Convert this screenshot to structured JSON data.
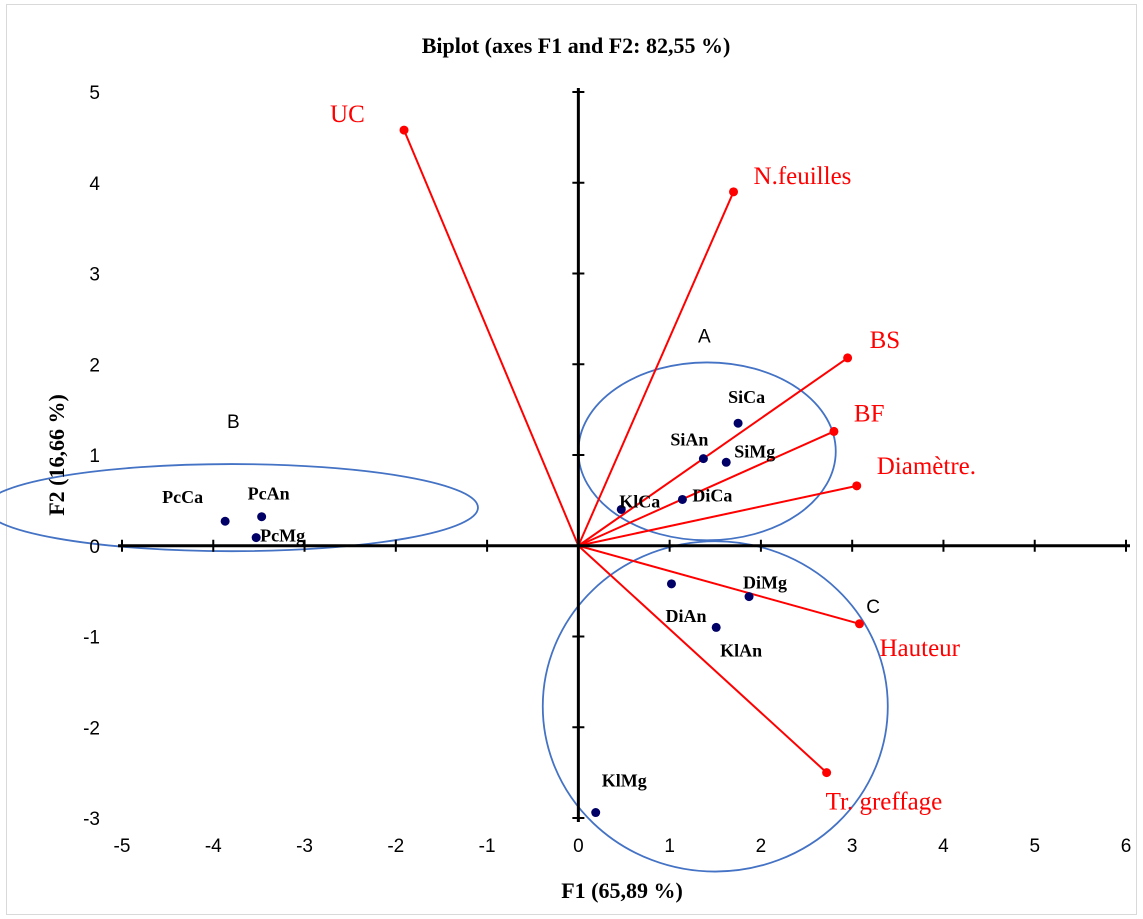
{
  "chart_data": {
    "type": "scatter",
    "title": "Biplot (axes F1 and F2: 82,55 %)",
    "xlabel": "F1 (65,89 %)",
    "ylabel": "F2 (16,66 %)",
    "xlim": [
      -5,
      6
    ],
    "ylim": [
      -3,
      5
    ],
    "x_ticks": [
      "-5",
      "-4",
      "-3",
      "-2",
      "-1",
      "0",
      "1",
      "2",
      "3",
      "4",
      "5",
      "6"
    ],
    "y_ticks": [
      "-3",
      "-2",
      "-1",
      "0",
      "1",
      "2",
      "3",
      "4",
      "5"
    ],
    "grid": false,
    "observations": [
      {
        "label": "PcCa",
        "x": -3.87,
        "y": 0.27
      },
      {
        "label": "PcAn",
        "x": -3.47,
        "y": 0.32
      },
      {
        "label": "PcMg",
        "x": -3.53,
        "y": 0.09
      },
      {
        "label": "SiCa",
        "x": 1.75,
        "y": 1.35
      },
      {
        "label": "SiAn",
        "x": 1.37,
        "y": 0.96
      },
      {
        "label": "SiMg",
        "x": 1.62,
        "y": 0.92
      },
      {
        "label": "KlCa",
        "x": 0.47,
        "y": 0.4
      },
      {
        "label": "DiCa",
        "x": 1.14,
        "y": 0.51
      },
      {
        "label": "DiAn",
        "x": 1.02,
        "y": -0.42
      },
      {
        "label": "DiMg",
        "x": 1.87,
        "y": -0.56
      },
      {
        "label": "KlAn",
        "x": 1.51,
        "y": -0.9
      },
      {
        "label": "KlMg",
        "x": 0.19,
        "y": -2.94
      }
    ],
    "variables": [
      {
        "label": "UC",
        "x": -1.91,
        "y": 4.58
      },
      {
        "label": "N.feuilles",
        "x": 1.7,
        "y": 3.9
      },
      {
        "label": "BS",
        "x": 2.95,
        "y": 2.07
      },
      {
        "label": "BF",
        "x": 2.8,
        "y": 1.26
      },
      {
        "label": "Diamètre.",
        "x": 3.05,
        "y": 0.66
      },
      {
        "label": "Hauteur",
        "x": 3.08,
        "y": -0.86
      },
      {
        "label": "Tr. greffage",
        "x": 2.72,
        "y": -2.5
      }
    ],
    "groups": [
      {
        "label": "A",
        "cx": 1.41,
        "cy": 1.04,
        "rx": 1.41,
        "ry": 0.98
      },
      {
        "label": "B",
        "cx": -3.8,
        "cy": 0.42,
        "rx": 2.7,
        "ry": 0.48
      },
      {
        "label": "C",
        "cx": 1.5,
        "cy": -1.77,
        "rx": 1.89,
        "ry": 1.82
      }
    ],
    "colors": {
      "observation": "#000066",
      "variable": "#ff0000",
      "ellipse": "#4472c4",
      "axis": "#000000"
    }
  }
}
